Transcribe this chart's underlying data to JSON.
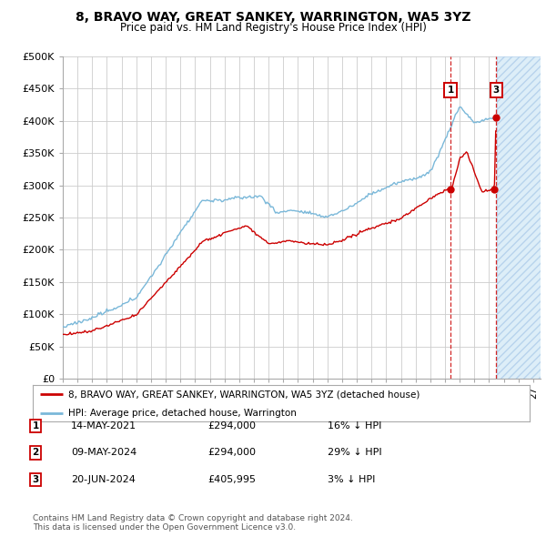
{
  "title": "8, BRAVO WAY, GREAT SANKEY, WARRINGTON, WA5 3YZ",
  "subtitle": "Price paid vs. HM Land Registry's House Price Index (HPI)",
  "ylim": [
    0,
    500000
  ],
  "yticks": [
    0,
    50000,
    100000,
    150000,
    200000,
    250000,
    300000,
    350000,
    400000,
    450000,
    500000
  ],
  "ytick_labels": [
    "£0",
    "£50K",
    "£100K",
    "£150K",
    "£200K",
    "£250K",
    "£300K",
    "£350K",
    "£400K",
    "£450K",
    "£500K"
  ],
  "xlim_start": 1995.0,
  "xlim_end": 2027.5,
  "hpi_color": "#7ab8d9",
  "price_color": "#cc0000",
  "bg_color": "#ffffff",
  "grid_color": "#cccccc",
  "hatch_bg_color": "#ddeef8",
  "transactions": [
    {
      "num": 1,
      "date": "14-MAY-2021",
      "price": 294000,
      "year": 2021.37,
      "hpi_pct": "16% ↓ HPI",
      "show_vline": true
    },
    {
      "num": 2,
      "date": "09-MAY-2024",
      "price": 294000,
      "year": 2024.36,
      "hpi_pct": "29% ↓ HPI",
      "show_vline": false
    },
    {
      "num": 3,
      "date": "20-JUN-2024",
      "price": 405995,
      "year": 2024.47,
      "hpi_pct": "3% ↓ HPI",
      "show_vline": true
    }
  ],
  "legend_label_red": "8, BRAVO WAY, GREAT SANKEY, WARRINGTON, WA5 3YZ (detached house)",
  "legend_label_blue": "HPI: Average price, detached house, Warrington",
  "footer": "Contains HM Land Registry data © Crown copyright and database right 2024.\nThis data is licensed under the Open Government Licence v3.0.",
  "xtick_years": [
    1995,
    1996,
    1997,
    1998,
    1999,
    2000,
    2001,
    2002,
    2003,
    2004,
    2005,
    2006,
    2007,
    2008,
    2009,
    2010,
    2011,
    2012,
    2013,
    2014,
    2015,
    2016,
    2017,
    2018,
    2019,
    2020,
    2021,
    2022,
    2023,
    2024,
    2025,
    2026,
    2027
  ],
  "hatch_start": 2024.5
}
